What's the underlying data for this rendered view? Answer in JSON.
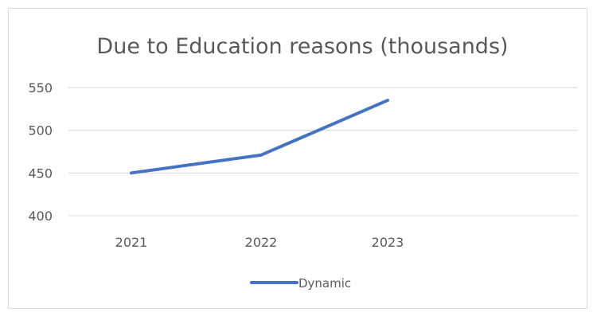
{
  "chart_data": {
    "type": "line",
    "title": "Due to Education reasons (thousands)",
    "categories": [
      "2021",
      "2022",
      "2023"
    ],
    "series": [
      {
        "name": "Dynamic",
        "values": [
          450,
          471,
          535
        ],
        "color": "#4472c4"
      }
    ],
    "ylim": [
      400,
      550
    ],
    "yticks": [
      "400",
      "450",
      "500",
      "550"
    ],
    "grid": true,
    "legend": "bottom"
  }
}
